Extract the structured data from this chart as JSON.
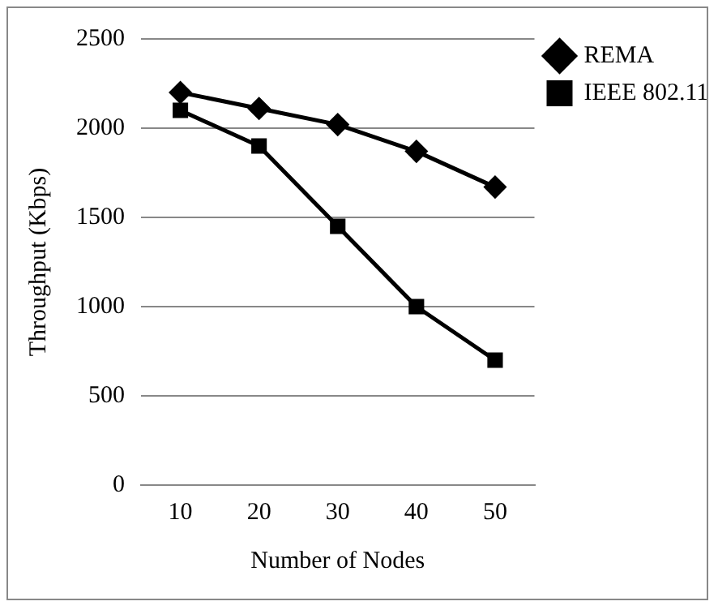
{
  "chart_data": {
    "type": "line",
    "xlabel": "Number of Nodes",
    "ylabel": "Throughput (Kbps)",
    "categories": [
      "10",
      "20",
      "30",
      "40",
      "50"
    ],
    "series": [
      {
        "name": "REMA",
        "color": "#000000",
        "marker": "diamond",
        "values": [
          2200,
          2110,
          2020,
          1870,
          1670
        ]
      },
      {
        "name": "IEEE 802.11",
        "color": "#000000",
        "marker": "square",
        "values": [
          2100,
          1900,
          1450,
          1000,
          700
        ]
      }
    ],
    "ylim": [
      0,
      2500
    ],
    "yticks": [
      0,
      500,
      1000,
      1500,
      2000,
      2500
    ],
    "grid": "y",
    "legend": "top right",
    "line_style": "solid"
  }
}
